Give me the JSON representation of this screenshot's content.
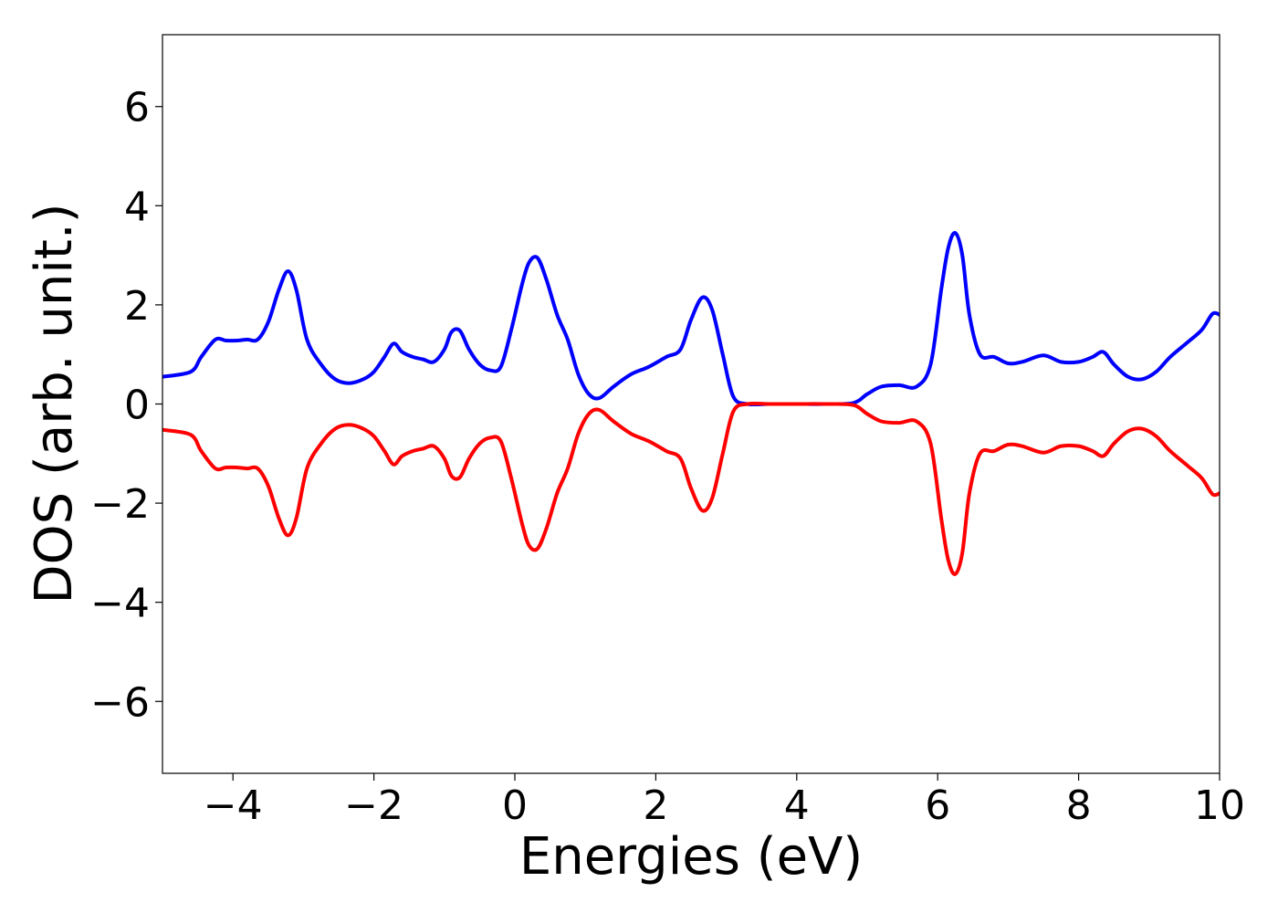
{
  "chart_data": {
    "type": "line",
    "title": "",
    "xlabel": "Energies (eV)",
    "ylabel": "DOS (arb. unit.)",
    "xlim": [
      -5,
      10
    ],
    "ylim": [
      -7.45,
      7.45
    ],
    "xticks": [
      -4,
      -2,
      0,
      2,
      4,
      6,
      8,
      10
    ],
    "xtick_labels": [
      "−4",
      "−2",
      "0",
      "2",
      "4",
      "6",
      "8",
      "10"
    ],
    "yticks": [
      -6,
      -4,
      -2,
      0,
      2,
      4,
      6
    ],
    "ytick_labels": [
      "−6",
      "−4",
      "−2",
      "0",
      "2",
      "4",
      "6"
    ],
    "grid": false,
    "legend": "none",
    "series": [
      {
        "color": "#0000ff",
        "x": [
          -5.0,
          -4.6,
          -4.45,
          -4.25,
          -4.1,
          -3.95,
          -3.8,
          -3.65,
          -3.5,
          -3.35,
          -3.22,
          -3.1,
          -2.95,
          -2.75,
          -2.55,
          -2.35,
          -2.15,
          -2.0,
          -1.85,
          -1.72,
          -1.6,
          -1.45,
          -1.3,
          -1.15,
          -1.0,
          -0.9,
          -0.78,
          -0.65,
          -0.5,
          -0.35,
          -0.2,
          -0.05,
          0.1,
          0.2,
          0.32,
          0.45,
          0.6,
          0.75,
          0.9,
          1.05,
          1.2,
          1.4,
          1.65,
          1.9,
          2.15,
          2.35,
          2.5,
          2.66,
          2.8,
          2.95,
          3.1,
          3.3,
          3.6,
          4.0,
          4.4,
          4.8,
          5.0,
          5.2,
          5.45,
          5.7,
          5.9,
          6.05,
          6.15,
          6.25,
          6.35,
          6.45,
          6.6,
          6.8,
          7.0,
          7.2,
          7.5,
          7.75,
          8.0,
          8.2,
          8.35,
          8.5,
          8.7,
          8.9,
          9.1,
          9.3,
          9.55,
          9.75,
          9.9,
          10.0
        ],
        "values": [
          0.55,
          0.65,
          0.95,
          1.3,
          1.28,
          1.28,
          1.3,
          1.3,
          1.65,
          2.3,
          2.68,
          2.3,
          1.3,
          0.8,
          0.5,
          0.42,
          0.5,
          0.65,
          0.95,
          1.22,
          1.05,
          0.95,
          0.9,
          0.85,
          1.1,
          1.45,
          1.48,
          1.1,
          0.8,
          0.68,
          0.75,
          1.5,
          2.4,
          2.85,
          2.95,
          2.5,
          1.8,
          1.3,
          0.6,
          0.2,
          0.12,
          0.35,
          0.6,
          0.75,
          0.95,
          1.1,
          1.7,
          2.15,
          1.9,
          1.0,
          0.15,
          0.0,
          0.0,
          0.0,
          0.0,
          0.02,
          0.2,
          0.35,
          0.38,
          0.35,
          0.8,
          2.3,
          3.15,
          3.45,
          3.0,
          1.8,
          1.0,
          0.95,
          0.82,
          0.85,
          0.98,
          0.85,
          0.85,
          0.95,
          1.05,
          0.8,
          0.55,
          0.5,
          0.65,
          0.95,
          1.25,
          1.5,
          1.82,
          1.8
        ]
      },
      {
        "color": "#ff0000",
        "x": [
          -5.0,
          -4.6,
          -4.45,
          -4.25,
          -4.1,
          -3.95,
          -3.8,
          -3.65,
          -3.5,
          -3.35,
          -3.22,
          -3.1,
          -2.95,
          -2.75,
          -2.55,
          -2.35,
          -2.15,
          -2.0,
          -1.85,
          -1.72,
          -1.6,
          -1.45,
          -1.3,
          -1.15,
          -1.0,
          -0.9,
          -0.78,
          -0.65,
          -0.5,
          -0.35,
          -0.2,
          -0.05,
          0.1,
          0.2,
          0.32,
          0.45,
          0.6,
          0.75,
          0.9,
          1.05,
          1.2,
          1.4,
          1.65,
          1.9,
          2.15,
          2.35,
          2.5,
          2.66,
          2.8,
          2.95,
          3.1,
          3.3,
          3.6,
          4.0,
          4.4,
          4.8,
          5.0,
          5.2,
          5.45,
          5.7,
          5.9,
          6.05,
          6.15,
          6.25,
          6.35,
          6.45,
          6.6,
          6.8,
          7.0,
          7.2,
          7.5,
          7.75,
          8.0,
          8.2,
          8.35,
          8.5,
          8.7,
          8.9,
          9.1,
          9.3,
          9.55,
          9.75,
          9.9,
          10.0
        ],
        "values": [
          -0.52,
          -0.62,
          -0.95,
          -1.3,
          -1.28,
          -1.28,
          -1.3,
          -1.3,
          -1.65,
          -2.3,
          -2.65,
          -2.3,
          -1.3,
          -0.8,
          -0.5,
          -0.42,
          -0.5,
          -0.65,
          -0.95,
          -1.22,
          -1.05,
          -0.95,
          -0.9,
          -0.85,
          -1.1,
          -1.45,
          -1.48,
          -1.1,
          -0.8,
          -0.68,
          -0.75,
          -1.5,
          -2.4,
          -2.85,
          -2.92,
          -2.5,
          -1.8,
          -1.3,
          -0.6,
          -0.2,
          -0.12,
          -0.35,
          -0.6,
          -0.75,
          -0.95,
          -1.1,
          -1.7,
          -2.15,
          -1.9,
          -1.0,
          -0.15,
          0.0,
          0.0,
          0.0,
          0.0,
          -0.02,
          -0.2,
          -0.35,
          -0.38,
          -0.35,
          -0.8,
          -2.3,
          -3.15,
          -3.43,
          -3.0,
          -1.8,
          -1.0,
          -0.95,
          -0.82,
          -0.85,
          -0.98,
          -0.85,
          -0.85,
          -0.95,
          -1.05,
          -0.8,
          -0.55,
          -0.5,
          -0.65,
          -0.95,
          -1.25,
          -1.5,
          -1.82,
          -1.8
        ]
      }
    ]
  }
}
